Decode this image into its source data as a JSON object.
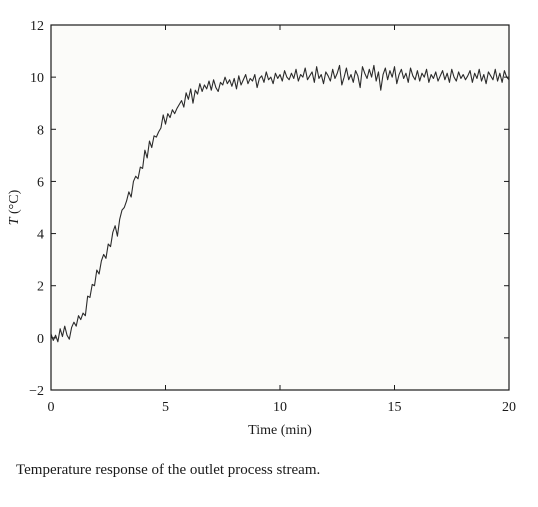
{
  "caption": "Temperature response of the outlet process stream.",
  "chart_data": {
    "type": "line",
    "title": "",
    "xlabel": "Time (min)",
    "ylabel_var": "T",
    "ylabel_unit": "(°C)",
    "xlim": [
      0,
      20
    ],
    "ylim": [
      -2,
      12
    ],
    "xticks": [
      0,
      5,
      10,
      15,
      20
    ],
    "yticks": [
      -2,
      0,
      2,
      4,
      6,
      8,
      10,
      12
    ],
    "grid": false,
    "legend": "none",
    "background_color": "#fbfbf9",
    "line_color": "#2b2b2b",
    "series": [
      {
        "x": [
          0.0,
          0.1,
          0.2,
          0.3,
          0.4,
          0.5,
          0.6,
          0.7,
          0.8,
          0.9,
          1.0,
          1.1,
          1.2,
          1.3,
          1.4,
          1.5,
          1.6,
          1.7,
          1.8,
          1.9,
          2.0,
          2.1,
          2.2,
          2.3,
          2.4,
          2.5,
          2.6,
          2.7,
          2.8,
          2.9,
          3.0,
          3.1,
          3.2,
          3.3,
          3.4,
          3.5,
          3.6,
          3.7,
          3.8,
          3.9,
          4.0,
          4.1,
          4.2,
          4.3,
          4.4,
          4.5,
          4.6,
          4.7,
          4.8,
          4.9,
          5.0,
          5.1,
          5.2,
          5.3,
          5.4,
          5.5,
          5.6,
          5.7,
          5.8,
          5.9,
          6.0,
          6.1,
          6.2,
          6.3,
          6.4,
          6.5,
          6.6,
          6.7,
          6.8,
          6.9,
          7.0,
          7.1,
          7.2,
          7.3,
          7.4,
          7.5,
          7.6,
          7.7,
          7.8,
          7.9,
          8.0,
          8.1,
          8.2,
          8.3,
          8.4,
          8.5,
          8.6,
          8.7,
          8.8,
          8.9,
          9.0,
          9.1,
          9.2,
          9.3,
          9.4,
          9.5,
          9.6,
          9.7,
          9.8,
          9.9,
          10.0,
          10.1,
          10.2,
          10.3,
          10.4,
          10.5,
          10.6,
          10.7,
          10.8,
          10.9,
          11.0,
          11.1,
          11.2,
          11.3,
          11.4,
          11.5,
          11.6,
          11.7,
          11.8,
          11.9,
          12.0,
          12.1,
          12.2,
          12.3,
          12.4,
          12.5,
          12.6,
          12.7,
          12.8,
          12.9,
          13.0,
          13.1,
          13.2,
          13.3,
          13.4,
          13.5,
          13.6,
          13.7,
          13.8,
          13.9,
          14.0,
          14.1,
          14.2,
          14.3,
          14.4,
          14.5,
          14.6,
          14.7,
          14.8,
          14.9,
          15.0,
          15.1,
          15.2,
          15.3,
          15.4,
          15.5,
          15.6,
          15.7,
          15.8,
          15.9,
          16.0,
          16.1,
          16.2,
          16.3,
          16.4,
          16.5,
          16.6,
          16.7,
          16.8,
          16.9,
          17.0,
          17.1,
          17.2,
          17.3,
          17.4,
          17.5,
          17.6,
          17.7,
          17.8,
          17.9,
          18.0,
          18.1,
          18.2,
          18.3,
          18.4,
          18.5,
          18.6,
          18.7,
          18.8,
          18.9,
          19.0,
          19.1,
          19.2,
          19.3,
          19.4,
          19.5,
          19.6,
          19.7,
          19.8,
          19.9,
          20.0
        ],
        "values": [
          0.15,
          -0.1,
          0.1,
          -0.15,
          0.35,
          0.05,
          0.45,
          0.1,
          -0.05,
          0.4,
          0.6,
          0.45,
          0.85,
          0.7,
          0.95,
          0.85,
          1.6,
          1.55,
          2.05,
          2.0,
          2.6,
          2.45,
          2.95,
          3.2,
          3.05,
          3.6,
          3.5,
          4.05,
          4.3,
          3.9,
          4.55,
          4.9,
          5.0,
          5.25,
          5.6,
          5.4,
          6.0,
          6.2,
          6.1,
          6.55,
          6.5,
          7.2,
          6.9,
          7.55,
          7.3,
          7.75,
          7.7,
          7.9,
          8.05,
          8.55,
          8.2,
          8.6,
          8.45,
          8.75,
          8.6,
          8.8,
          8.95,
          9.1,
          8.85,
          9.4,
          9.15,
          9.55,
          9.0,
          9.5,
          9.35,
          9.75,
          9.45,
          9.7,
          9.55,
          9.85,
          9.5,
          9.9,
          9.6,
          9.45,
          9.8,
          9.7,
          10.0,
          9.75,
          9.9,
          9.65,
          9.95,
          9.55,
          10.05,
          9.7,
          9.9,
          10.1,
          9.75,
          9.95,
          9.85,
          10.1,
          9.6,
          9.95,
          10.05,
          9.8,
          10.2,
          9.9,
          10.0,
          9.75,
          10.15,
          9.95,
          10.1,
          9.85,
          10.25,
          10.0,
          9.9,
          10.15,
          9.95,
          10.3,
          9.85,
          10.1,
          10.0,
          10.35,
          9.9,
          10.05,
          10.2,
          9.8,
          10.4,
          9.95,
          10.1,
          9.75,
          10.2,
          10.05,
          9.85,
          10.3,
          9.95,
          10.15,
          10.45,
          9.7,
          10.0,
          10.35,
          9.9,
          10.1,
          9.8,
          10.25,
          10.05,
          9.6,
          10.4,
          10.15,
          9.95,
          10.3,
          10.0,
          10.45,
          9.85,
          10.2,
          9.5,
          10.1,
          10.35,
          9.9,
          10.25,
          10.0,
          10.4,
          9.75,
          10.1,
          10.3,
          9.95,
          10.15,
          9.8,
          10.35,
          10.05,
          9.9,
          10.25,
          9.85,
          10.15,
          10.0,
          10.3,
          9.8,
          10.1,
          9.95,
          10.2,
          9.85,
          10.05,
          10.25,
          9.9,
          10.15,
          9.8,
          10.3,
          10.0,
          9.85,
          10.2,
          9.95,
          10.1,
          9.9,
          10.05,
          10.25,
          9.8,
          10.15,
          9.95,
          10.3,
          9.85,
          10.1,
          9.75,
          10.2,
          10.05,
          9.9,
          10.3,
          9.85,
          10.15,
          9.8,
          10.25,
          10.0,
          9.9
        ]
      }
    ]
  }
}
